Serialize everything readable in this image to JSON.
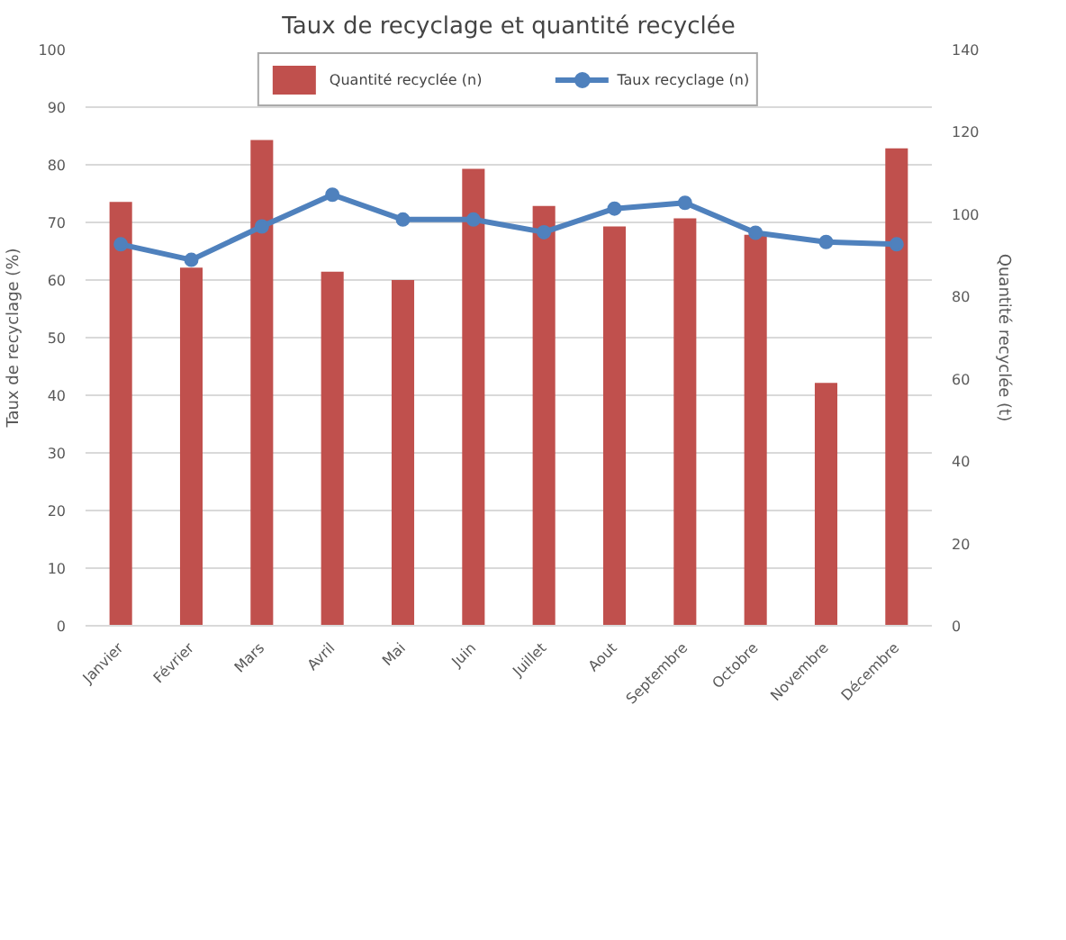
{
  "chart_data": {
    "type": "bar",
    "title": "Taux de recyclage et quantité recyclée",
    "categories": [
      "Janvier",
      "Février",
      "Mars",
      "Avril",
      "Mai",
      "Juin",
      "Juillet",
      "Aout",
      "Septembre",
      "Octobre",
      "Novembre",
      "Décembre"
    ],
    "series": [
      {
        "name": "Quantité recyclée (n)",
        "axis": "y2",
        "color": "#c0504d",
        "values": [
          103,
          87,
          118,
          86,
          84,
          111,
          102,
          97,
          99,
          95,
          59,
          116
        ]
      },
      {
        "name": "Taux recyclage (n)",
        "type": "line",
        "color": "#4f81bd",
        "values": [
          66.2,
          63.5,
          69.3,
          74.8,
          70.5,
          70.5,
          68.3,
          72.4,
          73.4,
          68.2,
          66.6,
          66.2
        ]
      }
    ],
    "ylabel": "Taux de recyclage (%)",
    "y2label": "Quantité recyclée (t)",
    "ylim": [
      0,
      100
    ],
    "yticks": [
      0,
      10,
      20,
      30,
      40,
      50,
      60,
      70,
      80,
      90,
      100
    ],
    "y2lim": [
      0,
      140
    ],
    "y2ticks": [
      0,
      20,
      40,
      60,
      80,
      100,
      120,
      140
    ],
    "grid": "y",
    "legend": "top",
    "marker": "circle",
    "line_style": "solid"
  }
}
